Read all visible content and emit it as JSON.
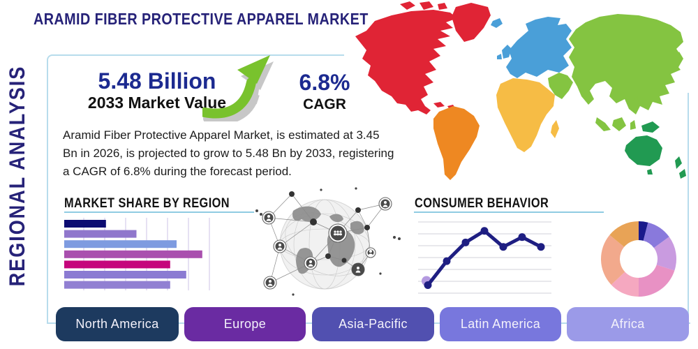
{
  "title": "ARAMID FIBER PROTECTIVE APPAREL MARKET",
  "sidebar_label": "REGIONAL ANALYSIS",
  "stats": {
    "market_value": "5.48 Billion",
    "market_value_label": "2033 Market Value",
    "cagr_value": "6.8%",
    "cagr_label": "CAGR"
  },
  "description": "Aramid Fiber Protective Apparel Market, is estimated at 3.45 Bn in 2026, is projected to grow to 5.48 Bn by 2033, registering a CAGR of 6.8% during the forecast period.",
  "sections": {
    "market_share_title": "MARKET SHARE BY REGION",
    "consumer_behavior_title": "CONSUMER BEHAVIOR"
  },
  "region_buttons": [
    {
      "label": "North America",
      "color": "#1d3a5f"
    },
    {
      "label": "Europe",
      "color": "#6a2ba2"
    },
    {
      "label": "Asia-Pacific",
      "color": "#5150b0"
    },
    {
      "label": "Latin America",
      "color": "#7877dd"
    },
    {
      "label": "Africa",
      "color": "#9b9ae8"
    }
  ],
  "colors": {
    "title_navy": "#262278",
    "stat_blue": "#1c2a90",
    "frame_light_blue": "#b7dcec",
    "header_rule_blue": "#8fcbe2",
    "arrow_green": "#79c22d",
    "arrow_shadow_gray": "#9a9a9a"
  },
  "map_colors": {
    "north_america": "#e02435",
    "south_america": "#ee8822",
    "europe": "#4a9fd8",
    "africa": "#f6bc45",
    "asia": "#84c441",
    "oceania": "#219a52"
  },
  "chart_data": [
    {
      "type": "bar",
      "title": "MARKET SHARE BY REGION",
      "orientation": "horizontal",
      "axis_labels_visible": false,
      "grid": "vertical",
      "values_pct": [
        26,
        45,
        70,
        86,
        66,
        76,
        66
      ],
      "note": "bar lengths estimated as % of chart width; no tick labels shown in source",
      "bar_colors": [
        "#0c0c72",
        "#9077cc",
        "#7e9be0",
        "#a94fae",
        "#c5067c",
        "#8b7bd2",
        "#9180d2"
      ]
    },
    {
      "type": "line",
      "title": "CONSUMER BEHAVIOR",
      "axis_labels_visible": false,
      "grid": "horizontal",
      "x": [
        1,
        2,
        3,
        4,
        5,
        6,
        7
      ],
      "values": [
        0.9,
        3.6,
        5.7,
        7.0,
        5.2,
        6.3,
        5.2
      ],
      "ylim": [
        0,
        8
      ],
      "line_color": "#1e1e82",
      "first_point_highlight_color": "#b49ae0"
    },
    {
      "type": "pie",
      "donut": true,
      "labels_visible": false,
      "values_pct": [
        4,
        11,
        15,
        20,
        13,
        23,
        14
      ],
      "colors": [
        "#1a1a8c",
        "#8979dc",
        "#c99be0",
        "#e891c4",
        "#f5a8c0",
        "#f2a98c",
        "#e8a356"
      ]
    }
  ]
}
